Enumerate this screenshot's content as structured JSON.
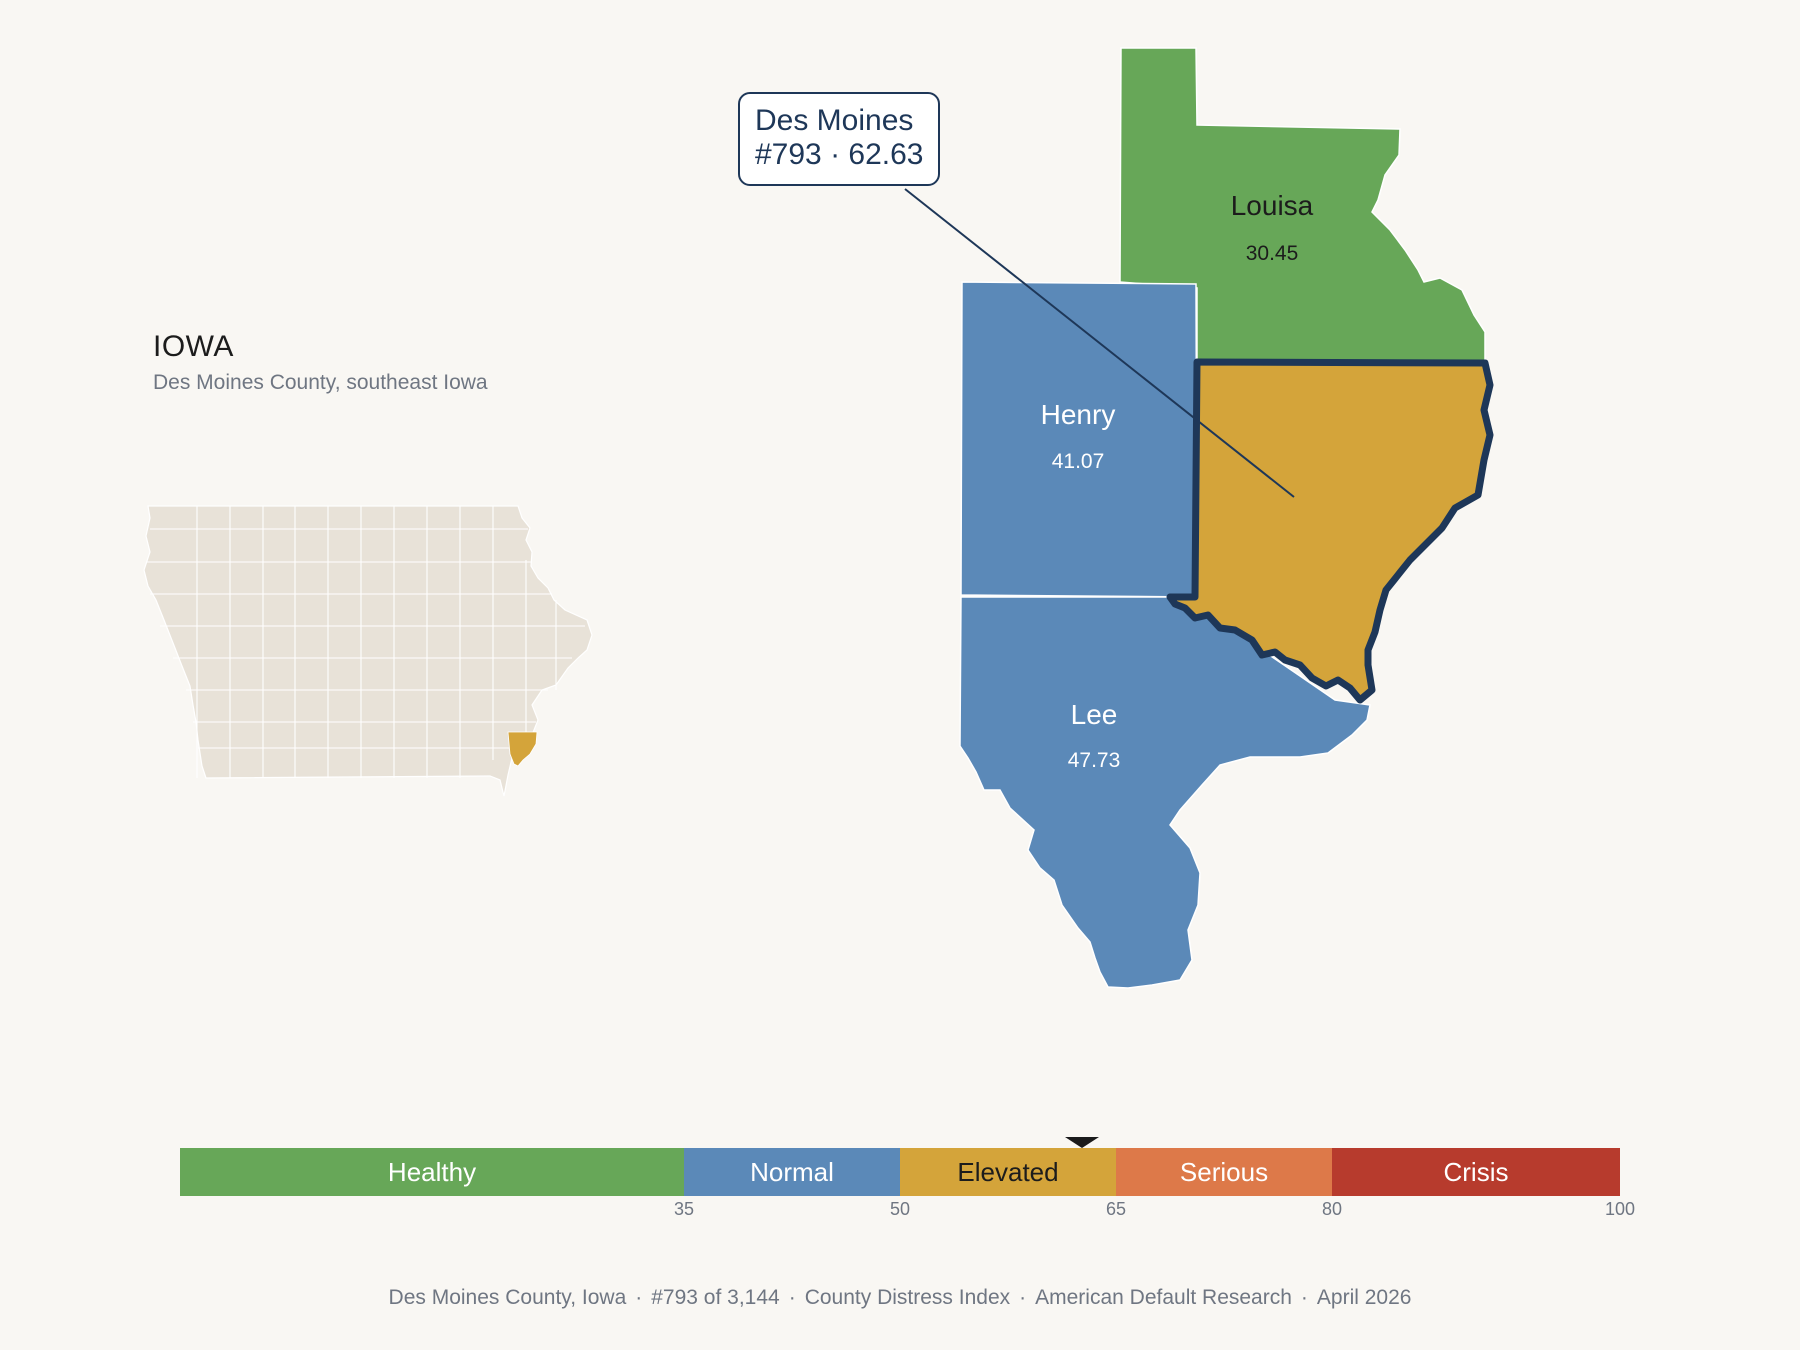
{
  "state": {
    "name": "IOWA",
    "subtitle": "Des Moines County, southeast Iowa"
  },
  "colors": {
    "background": "#f9f7f3",
    "healthy": "#67a758",
    "normal": "#5b89b8",
    "elevated": "#d4a43a",
    "serious": "#dd7949",
    "crisis": "#b73b2d",
    "outline": "#1e3758",
    "inset_fill": "#e8e2d8"
  },
  "callout": {
    "county": "Des Moines",
    "detail": "#793 · 62.63"
  },
  "counties": [
    {
      "name": "Louisa",
      "value": "30.45",
      "category": "Healthy"
    },
    {
      "name": "Henry",
      "value": "41.07",
      "category": "Normal"
    },
    {
      "name": "Lee",
      "value": "47.73",
      "category": "Normal"
    },
    {
      "name": "Des Moines",
      "value": "62.63",
      "category": "Elevated",
      "highlighted": true
    }
  ],
  "scale": {
    "segments": [
      {
        "label": "Healthy",
        "from": 0,
        "to": 35,
        "color": "#67a758",
        "text_color": "#ffffff"
      },
      {
        "label": "Normal",
        "from": 35,
        "to": 50,
        "color": "#5b89b8",
        "text_color": "#ffffff"
      },
      {
        "label": "Elevated",
        "from": 50,
        "to": 65,
        "color": "#d4a43a",
        "text_color": "#1c1c1c"
      },
      {
        "label": "Serious",
        "from": 65,
        "to": 80,
        "color": "#dd7949",
        "text_color": "#ffffff"
      },
      {
        "label": "Crisis",
        "from": 80,
        "to": 100,
        "color": "#b73b2d",
        "text_color": "#ffffff"
      }
    ],
    "ticks": [
      "35",
      "50",
      "65",
      "80",
      "100"
    ],
    "marker_value": 62.63
  },
  "footer": {
    "items": [
      "Des Moines County, Iowa",
      "#793 of 3,144",
      "County Distress Index",
      "American Default Research",
      "April 2026"
    ]
  }
}
